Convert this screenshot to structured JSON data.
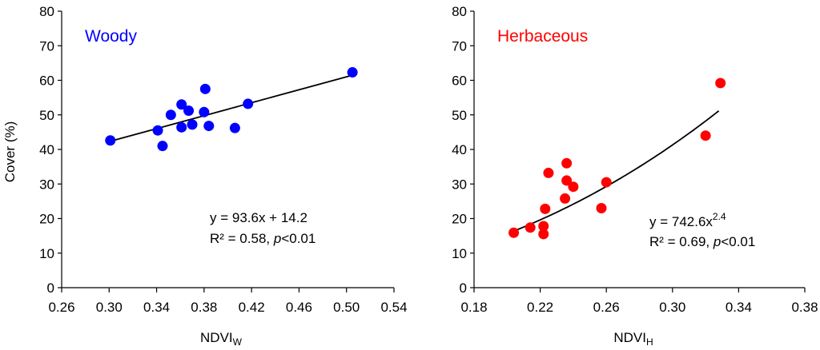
{
  "figure": {
    "shared_ylabel": "Cover (%)"
  },
  "chart_data": [
    {
      "type": "scatter",
      "panel_label": "Woody",
      "xlabel_main": "NDVI",
      "xlabel_sub": "W",
      "xlim": [
        0.26,
        0.54
      ],
      "ylim": [
        0,
        80
      ],
      "xticks": [
        "0.26",
        "0.30",
        "0.34",
        "0.38",
        "0.42",
        "0.46",
        "0.50",
        "0.54"
      ],
      "yticks": [
        "0",
        "10",
        "20",
        "30",
        "40",
        "50",
        "60",
        "70",
        "80"
      ],
      "grid": false,
      "color": "#0000ff",
      "points": [
        {
          "x": 0.301,
          "y": 42.6
        },
        {
          "x": 0.341,
          "y": 45.5
        },
        {
          "x": 0.345,
          "y": 41.0
        },
        {
          "x": 0.352,
          "y": 50.0
        },
        {
          "x": 0.361,
          "y": 53.0
        },
        {
          "x": 0.361,
          "y": 46.4
        },
        {
          "x": 0.367,
          "y": 51.2
        },
        {
          "x": 0.37,
          "y": 47.2
        },
        {
          "x": 0.381,
          "y": 57.5
        },
        {
          "x": 0.38,
          "y": 50.8
        },
        {
          "x": 0.384,
          "y": 46.8
        },
        {
          "x": 0.406,
          "y": 46.2
        },
        {
          "x": 0.417,
          "y": 53.2
        },
        {
          "x": 0.505,
          "y": 62.3
        }
      ],
      "fit": {
        "kind": "linear",
        "a": 93.6,
        "b": 14.2,
        "x_range": [
          0.301,
          0.505
        ]
      },
      "equation": "y = 93.6x + 14.2",
      "r2_prefix": "R² = 0.58, ",
      "p_italic": "p",
      "p_suffix": "<0.01"
    },
    {
      "type": "scatter",
      "panel_label": "Herbaceous",
      "xlabel_main": "NDVI",
      "xlabel_sub": "H",
      "xlim": [
        0.18,
        0.38
      ],
      "ylim": [
        0,
        80
      ],
      "xticks": [
        "0.18",
        "0.22",
        "0.26",
        "0.30",
        "0.34",
        "0.38"
      ],
      "yticks": [
        "0",
        "10",
        "20",
        "30",
        "40",
        "50",
        "60",
        "70",
        "80"
      ],
      "grid": false,
      "color": "#ff0000",
      "points": [
        {
          "x": 0.204,
          "y": 15.9
        },
        {
          "x": 0.214,
          "y": 17.4
        },
        {
          "x": 0.222,
          "y": 17.8
        },
        {
          "x": 0.222,
          "y": 15.5
        },
        {
          "x": 0.223,
          "y": 22.8
        },
        {
          "x": 0.225,
          "y": 33.2
        },
        {
          "x": 0.236,
          "y": 36.0
        },
        {
          "x": 0.236,
          "y": 31.0
        },
        {
          "x": 0.235,
          "y": 25.8
        },
        {
          "x": 0.24,
          "y": 29.2
        },
        {
          "x": 0.257,
          "y": 23.0
        },
        {
          "x": 0.26,
          "y": 30.5
        },
        {
          "x": 0.32,
          "y": 44.0
        },
        {
          "x": 0.329,
          "y": 59.2
        }
      ],
      "fit": {
        "kind": "power",
        "a": 742.6,
        "b": 2.4,
        "x_range": [
          0.204,
          0.328
        ]
      },
      "equation_main": "y = 742.6x",
      "equation_exp": "2.4",
      "r2_prefix": "R² = 0.69, ",
      "p_italic": "p",
      "p_suffix": "<0.01"
    }
  ]
}
